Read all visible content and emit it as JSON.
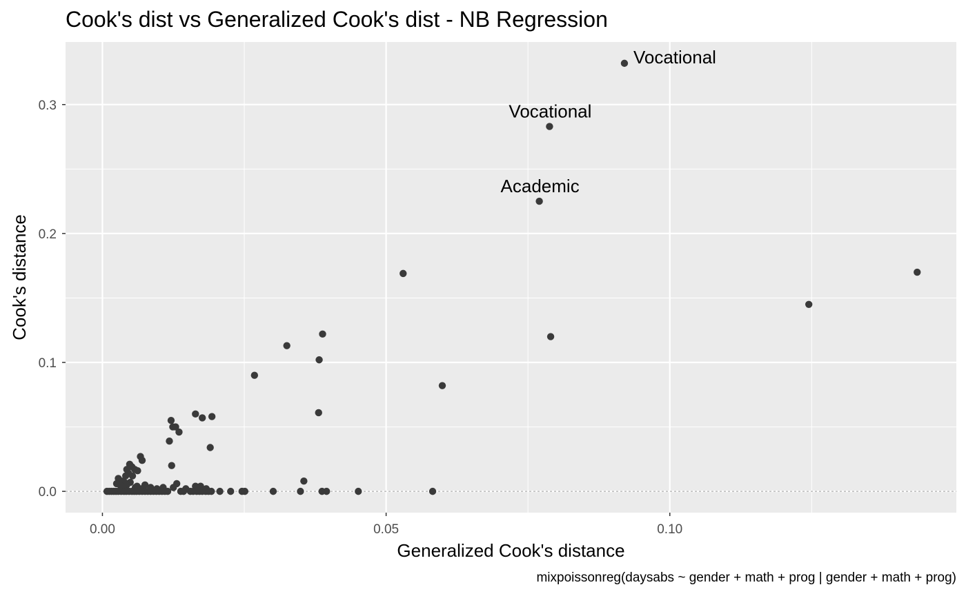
{
  "chart_data": {
    "type": "scatter",
    "title": "Cook's dist vs Generalized Cook's dist - NB Regression",
    "xlabel": "Generalized Cook's distance",
    "ylabel": "Cook's distance",
    "caption": "mixpoissonreg(daysabs ~ gender + math + prog | gender + math + prog)",
    "xlim": [
      -0.0065,
      0.1505
    ],
    "ylim": [
      -0.0165,
      0.3485
    ],
    "x_ticks": [
      0.0,
      0.05,
      0.1
    ],
    "x_tick_labels": [
      "0.00",
      "0.05",
      "0.10"
    ],
    "y_ticks": [
      0.0,
      0.1,
      0.2,
      0.3
    ],
    "y_tick_labels": [
      "0.0",
      "0.1",
      "0.2",
      "0.3"
    ],
    "x_minor": [
      0.025,
      0.075,
      0.125
    ],
    "y_minor": [
      0.05,
      0.15,
      0.25
    ],
    "grid": true,
    "panel_background": "#ebebeb",
    "point_color": "#3a3a3a",
    "reference_line": {
      "y": 0,
      "style": "dashed",
      "color": "#999999"
    },
    "series": [
      {
        "points": [
          [
            0.092,
            0.332
          ],
          [
            0.0788,
            0.283
          ],
          [
            0.077,
            0.225
          ],
          [
            0.053,
            0.169
          ],
          [
            0.1436,
            0.17
          ],
          [
            0.1245,
            0.145
          ],
          [
            0.079,
            0.12
          ],
          [
            0.0388,
            0.122
          ],
          [
            0.0325,
            0.113
          ],
          [
            0.0382,
            0.102
          ],
          [
            0.0599,
            0.082
          ],
          [
            0.0268,
            0.09
          ],
          [
            0.0381,
            0.061
          ],
          [
            0.0164,
            0.06
          ],
          [
            0.0176,
            0.057
          ],
          [
            0.0193,
            0.058
          ],
          [
            0.0121,
            0.055
          ],
          [
            0.0124,
            0.05
          ],
          [
            0.0129,
            0.05
          ],
          [
            0.0135,
            0.046
          ],
          [
            0.0118,
            0.039
          ],
          [
            0.019,
            0.034
          ],
          [
            0.0067,
            0.027
          ],
          [
            0.007,
            0.024
          ],
          [
            0.0048,
            0.021
          ],
          [
            0.0122,
            0.02
          ],
          [
            0.0052,
            0.019
          ],
          [
            0.0043,
            0.017
          ],
          [
            0.0057,
            0.017
          ],
          [
            0.0062,
            0.016
          ],
          [
            0.0046,
            0.014
          ],
          [
            0.0041,
            0.012
          ],
          [
            0.0053,
            0.012
          ],
          [
            0.0028,
            0.01
          ],
          [
            0.0034,
            0.008
          ],
          [
            0.0039,
            0.007
          ],
          [
            0.0049,
            0.007
          ],
          [
            0.0355,
            0.008
          ],
          [
            0.0025,
            0.006
          ],
          [
            0.0031,
            0.005
          ],
          [
            0.0043,
            0.005
          ],
          [
            0.0061,
            0.004
          ],
          [
            0.0075,
            0.005
          ],
          [
            0.0131,
            0.006
          ],
          [
            0.0164,
            0.004
          ],
          [
            0.0173,
            0.004
          ],
          [
            0.0036,
            0.003
          ],
          [
            0.0058,
            0.003
          ],
          [
            0.0085,
            0.003
          ],
          [
            0.0107,
            0.003
          ],
          [
            0.0125,
            0.003
          ],
          [
            0.0069,
            0.002
          ],
          [
            0.0096,
            0.002
          ],
          [
            0.0147,
            0.002
          ],
          [
            0.0183,
            0.002
          ],
          [
            0.0008,
            0.0
          ],
          [
            0.0012,
            0.0
          ],
          [
            0.0016,
            0.0
          ],
          [
            0.002,
            0.0
          ],
          [
            0.0024,
            0.0
          ],
          [
            0.0028,
            0.0
          ],
          [
            0.0033,
            0.0
          ],
          [
            0.0038,
            0.0
          ],
          [
            0.0042,
            0.0
          ],
          [
            0.0047,
            0.0
          ],
          [
            0.0052,
            0.0
          ],
          [
            0.0056,
            0.0
          ],
          [
            0.006,
            0.0
          ],
          [
            0.0065,
            0.0
          ],
          [
            0.007,
            0.0
          ],
          [
            0.0075,
            0.0
          ],
          [
            0.008,
            0.0
          ],
          [
            0.0085,
            0.0
          ],
          [
            0.009,
            0.0
          ],
          [
            0.0095,
            0.0
          ],
          [
            0.01,
            0.0
          ],
          [
            0.0105,
            0.0
          ],
          [
            0.011,
            0.0
          ],
          [
            0.0115,
            0.0
          ],
          [
            0.0138,
            0.0
          ],
          [
            0.0143,
            0.0
          ],
          [
            0.0155,
            0.0
          ],
          [
            0.016,
            0.0
          ],
          [
            0.0166,
            0.0
          ],
          [
            0.0171,
            0.0
          ],
          [
            0.0176,
            0.0
          ],
          [
            0.0182,
            0.0
          ],
          [
            0.0187,
            0.0
          ],
          [
            0.0192,
            0.0
          ],
          [
            0.0207,
            0.0
          ],
          [
            0.0226,
            0.0
          ],
          [
            0.0246,
            0.0
          ],
          [
            0.0251,
            0.0
          ],
          [
            0.0301,
            0.0
          ],
          [
            0.0349,
            0.0
          ],
          [
            0.0387,
            0.0
          ],
          [
            0.0395,
            0.0
          ],
          [
            0.0451,
            0.0
          ],
          [
            0.0582,
            0.0
          ]
        ]
      }
    ],
    "annotations": [
      {
        "x": 0.092,
        "y": 0.332,
        "text": "Vocational",
        "position": "right"
      },
      {
        "x": 0.0788,
        "y": 0.283,
        "text": "Vocational",
        "position": "above"
      },
      {
        "x": 0.077,
        "y": 0.225,
        "text": "Academic",
        "position": "above"
      }
    ]
  }
}
